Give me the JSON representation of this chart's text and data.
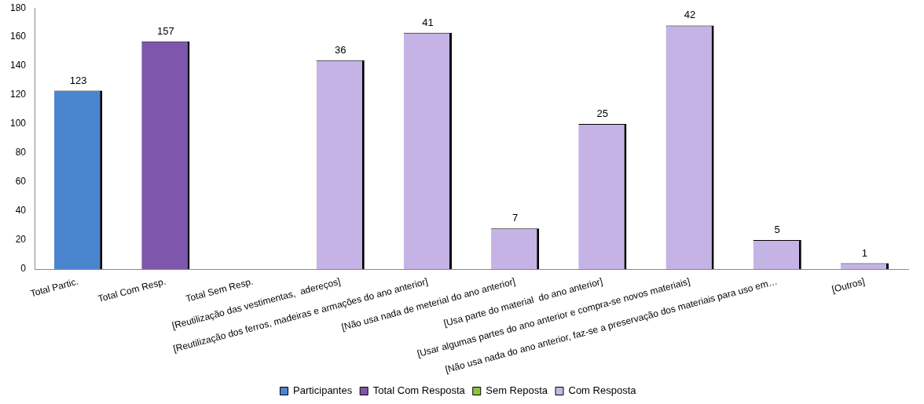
{
  "chart_data": {
    "type": "bar",
    "categories": [
      "Total Partic.",
      "Total Com Resp.",
      "Total Sem Resp.",
      "[Reutilização das vestimentas,  adereços]",
      "[Reutilização dos ferros, madeiras e armações do ano anterior]",
      "[Não usa nada de meterial do ano anterior]",
      "[Usa parte do material  do ano anterior]",
      "[Usar algumas partes do ano anterior e compra-se novos materiais]",
      "[Não usa nada do ano anterior, faz-se a preservação dos materiais para uso em…",
      "[Outros]"
    ],
    "series": [
      {
        "name": "Participantes",
        "color": "#4a86d0",
        "values": [
          123,
          null,
          null,
          null,
          null,
          null,
          null,
          null,
          null,
          null
        ],
        "value_labels": [
          "123",
          null,
          null,
          null,
          null,
          null,
          null,
          null,
          null,
          null
        ]
      },
      {
        "name": "Total Com Resposta",
        "color": "#7e57ad",
        "values": [
          null,
          157,
          null,
          null,
          null,
          null,
          null,
          null,
          null,
          null
        ],
        "value_labels": [
          null,
          "157",
          null,
          null,
          null,
          null,
          null,
          null,
          null,
          null
        ]
      },
      {
        "name": "Sem Reposta",
        "color": "#8cc43c",
        "values": [
          null,
          null,
          0,
          null,
          null,
          null,
          null,
          null,
          null,
          null
        ]
      },
      {
        "name": "Com Resposta",
        "color": "#c6b3e6",
        "values": [
          null,
          null,
          null,
          144,
          163,
          28,
          100,
          168,
          20,
          4
        ]
      }
    ],
    "annotations": [
      {
        "text": "36",
        "x": "[Reutilização das vestimentas,  adereços]",
        "y": 144
      },
      {
        "text": "41",
        "x": "[Reutilização dos ferros, madeiras e armações do ano anterior]",
        "y": 163
      },
      {
        "text": "7",
        "x": "[Não usa nada de meterial do ano anterior]",
        "y": 28
      },
      {
        "text": "25",
        "x": "[Usa parte do material  do ano anterior]",
        "y": 100
      },
      {
        "text": "42",
        "x": "[Usar algumas partes do ano anterior e compra-se novos materiais]",
        "y": 168
      },
      {
        "text": "5",
        "x": "[Não usa nada do ano anterior, faz-se a preservação dos materiais para uso em…",
        "y": 20
      },
      {
        "text": "1",
        "x": "[Outros]",
        "y": 4
      }
    ],
    "ylim": [
      0,
      180
    ],
    "yticks": [
      0,
      20,
      40,
      60,
      80,
      100,
      120,
      140,
      160,
      180
    ],
    "grid": false,
    "legend": "bottom"
  }
}
